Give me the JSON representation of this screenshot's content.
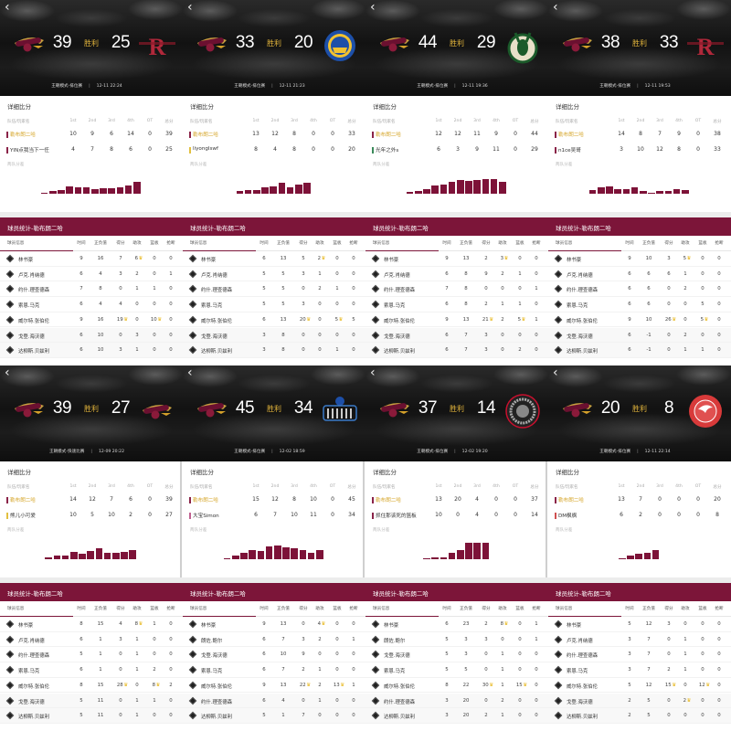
{
  "common": {
    "back_icon": "chevron-left-icon",
    "result": "胜利",
    "detail_title": "详细比分",
    "quarter_headers": [
      "队伍/玩家名",
      "1st",
      "2nd",
      "3rd",
      "4th",
      "OT",
      "总分"
    ],
    "diff_label": "两队分差",
    "stats_title": "球员统计-勒布朗二哈",
    "stat_headers": [
      "球员信息",
      "时间",
      "正负值",
      "得分",
      "助攻",
      "篮板",
      "抢断"
    ],
    "home_logo": "cavaliers-logo",
    "colors": {
      "accent": "#7c1539",
      "home_name": "#d6a62a",
      "result": "#e2b43c",
      "crown": "#e8b923"
    }
  },
  "games": [
    {
      "home_score": "39",
      "away_score": "25",
      "opp_logo": "rockets-logo",
      "mode": "王朝模式-排位赛",
      "datetime": "12-11 22:24",
      "teams": [
        {
          "name": "勒布朗二哈",
          "marker": "#8a2348",
          "q": [
            "10",
            "9",
            "6",
            "14",
            "0",
            "39"
          ]
        },
        {
          "name": "YIN点我当下一任",
          "marker": "#8a2348",
          "q": [
            "4",
            "7",
            "8",
            "6",
            "0",
            "25"
          ]
        }
      ],
      "diff_bars": [
        1,
        3,
        4,
        8,
        7,
        7,
        5,
        6,
        6,
        7,
        9,
        12
      ],
      "players": [
        {
          "name": "林书豪",
          "stats": [
            "9",
            "16",
            "7",
            "6",
            "0",
            "0"
          ],
          "crowns": [
            3
          ]
        },
        {
          "name": "卢克.肖纳德",
          "stats": [
            "6",
            "4",
            "3",
            "2",
            "0",
            "1"
          ],
          "crowns": []
        },
        {
          "name": "约什.理查德森",
          "stats": [
            "7",
            "8",
            "0",
            "1",
            "1",
            "0"
          ],
          "crowns": []
        },
        {
          "name": "索恩.马克",
          "stats": [
            "6",
            "4",
            "4",
            "0",
            "0",
            "0"
          ],
          "crowns": []
        },
        {
          "name": "威尔特.张伯伦",
          "stats": [
            "9",
            "16",
            "19",
            "0",
            "10",
            "0"
          ],
          "crowns": [
            2,
            4
          ]
        },
        {
          "name": "戈登.海沃德",
          "stats": [
            "6",
            "10",
            "0",
            "3",
            "0",
            "0"
          ],
          "crowns": []
        },
        {
          "name": "达柳斯.贝兹利",
          "stats": [
            "6",
            "10",
            "3",
            "1",
            "0",
            "0"
          ],
          "crowns": []
        }
      ]
    },
    {
      "home_score": "33",
      "away_score": "20",
      "opp_logo": "warriors-logo",
      "mode": "王朝模式-排位赛",
      "datetime": "12-11 21:23",
      "teams": [
        {
          "name": "勒布朗二哈",
          "marker": "#8a2348",
          "q": [
            "13",
            "12",
            "8",
            "0",
            "0",
            "33"
          ]
        },
        {
          "name": "liyonglswf",
          "marker": "#e2c040",
          "q": [
            "8",
            "4",
            "8",
            "0",
            "0",
            "20"
          ]
        }
      ],
      "diff_bars": [
        3,
        4,
        4,
        7,
        8,
        11,
        7,
        10,
        11
      ],
      "players": [
        {
          "name": "林书豪",
          "stats": [
            "6",
            "13",
            "5",
            "2",
            "0",
            "0"
          ],
          "crowns": [
            3
          ]
        },
        {
          "name": "卢克.肖纳德",
          "stats": [
            "5",
            "5",
            "3",
            "1",
            "0",
            "0"
          ],
          "crowns": []
        },
        {
          "name": "约什.理查德森",
          "stats": [
            "5",
            "5",
            "0",
            "2",
            "1",
            "0"
          ],
          "crowns": []
        },
        {
          "name": "索恩.马克",
          "stats": [
            "5",
            "5",
            "3",
            "0",
            "0",
            "0"
          ],
          "crowns": []
        },
        {
          "name": "威尔特.张伯伦",
          "stats": [
            "6",
            "13",
            "20",
            "0",
            "5",
            "5"
          ],
          "crowns": [
            2,
            4
          ]
        },
        {
          "name": "戈登.海沃德",
          "stats": [
            "3",
            "8",
            "0",
            "0",
            "0",
            "0"
          ],
          "crowns": []
        },
        {
          "name": "达柳斯.贝兹利",
          "stats": [
            "3",
            "8",
            "0",
            "0",
            "1",
            "0"
          ],
          "crowns": []
        }
      ]
    },
    {
      "home_score": "44",
      "away_score": "29",
      "opp_logo": "bucks-logo",
      "mode": "王朝模式-排位赛",
      "datetime": "12-11 19:36",
      "teams": [
        {
          "name": "勒布朗二哈",
          "marker": "#8a2348",
          "q": [
            "12",
            "12",
            "11",
            "9",
            "0",
            "44"
          ]
        },
        {
          "name": "光年之外s",
          "marker": "#3a8a5a",
          "q": [
            "6",
            "3",
            "9",
            "11",
            "0",
            "29"
          ]
        }
      ],
      "diff_bars": [
        2,
        3,
        5,
        9,
        10,
        12,
        14,
        13,
        14,
        15,
        15,
        12
      ],
      "players": [
        {
          "name": "林书豪",
          "stats": [
            "9",
            "13",
            "2",
            "3",
            "0",
            "0"
          ],
          "crowns": [
            3
          ]
        },
        {
          "name": "卢克.肖纳德",
          "stats": [
            "6",
            "8",
            "9",
            "2",
            "1",
            "0"
          ],
          "crowns": []
        },
        {
          "name": "约什.理查德森",
          "stats": [
            "7",
            "8",
            "0",
            "0",
            "0",
            "1"
          ],
          "crowns": []
        },
        {
          "name": "索恩.马克",
          "stats": [
            "6",
            "8",
            "2",
            "1",
            "1",
            "0"
          ],
          "crowns": []
        },
        {
          "name": "威尔特.张伯伦",
          "stats": [
            "9",
            "13",
            "21",
            "2",
            "5",
            "1"
          ],
          "crowns": [
            2,
            4
          ]
        },
        {
          "name": "戈登.海沃德",
          "stats": [
            "6",
            "7",
            "3",
            "0",
            "0",
            "0"
          ],
          "crowns": []
        },
        {
          "name": "达柳斯.贝兹利",
          "stats": [
            "6",
            "7",
            "3",
            "0",
            "2",
            "0"
          ],
          "crowns": []
        }
      ]
    },
    {
      "home_score": "38",
      "away_score": "33",
      "opp_logo": "rockets-logo",
      "mode": "王朝模式-排位赛",
      "datetime": "12-11 19:53",
      "teams": [
        {
          "name": "勒布朗二哈",
          "marker": "#8a2348",
          "q": [
            "14",
            "8",
            "7",
            "9",
            "0",
            "38"
          ]
        },
        {
          "name": "n1ce吴哥",
          "marker": "#8a2348",
          "q": [
            "3",
            "10",
            "12",
            "8",
            "0",
            "33"
          ]
        }
      ],
      "diff_bars": [
        4,
        7,
        8,
        5,
        5,
        7,
        3,
        1,
        3,
        3,
        5,
        4
      ],
      "players": [
        {
          "name": "林书豪",
          "stats": [
            "9",
            "10",
            "3",
            "5",
            "0",
            "0"
          ],
          "crowns": [
            3
          ]
        },
        {
          "name": "卢克.肖纳德",
          "stats": [
            "6",
            "6",
            "6",
            "1",
            "0",
            "0"
          ],
          "crowns": []
        },
        {
          "name": "约什.理查德森",
          "stats": [
            "6",
            "6",
            "0",
            "2",
            "0",
            "0"
          ],
          "crowns": []
        },
        {
          "name": "索恩.马克",
          "stats": [
            "6",
            "6",
            "0",
            "0",
            "5",
            "0"
          ],
          "crowns": []
        },
        {
          "name": "威尔特.张伯伦",
          "stats": [
            "9",
            "10",
            "26",
            "0",
            "5",
            "0"
          ],
          "crowns": [
            2,
            4
          ]
        },
        {
          "name": "戈登.海沃德",
          "stats": [
            "6",
            "-1",
            "0",
            "2",
            "0",
            "0"
          ],
          "crowns": []
        },
        {
          "name": "达柳斯.贝兹利",
          "stats": [
            "6",
            "-1",
            "0",
            "1",
            "1",
            "0"
          ],
          "crowns": []
        }
      ]
    },
    {
      "home_score": "39",
      "away_score": "27",
      "opp_logo": "cavaliers-logo",
      "mode": "王朝模式-快速比赛",
      "datetime": "12-09 20:22",
      "teams": [
        {
          "name": "勒布朗二哈",
          "marker": "#8a2348",
          "q": [
            "14",
            "12",
            "7",
            "6",
            "0",
            "39"
          ]
        },
        {
          "name": "熊儿小可爱",
          "marker": "#e2c040",
          "q": [
            "10",
            "5",
            "10",
            "2",
            "0",
            "27"
          ]
        }
      ],
      "diff_bars": [
        2,
        4,
        4,
        8,
        6,
        9,
        11,
        7,
        7,
        8,
        10
      ],
      "players": [
        {
          "name": "林书豪",
          "stats": [
            "8",
            "15",
            "4",
            "8",
            "1",
            "0"
          ],
          "crowns": [
            3
          ]
        },
        {
          "name": "卢克.肖纳德",
          "stats": [
            "6",
            "1",
            "3",
            "1",
            "0",
            "0"
          ],
          "crowns": []
        },
        {
          "name": "约什.理查德森",
          "stats": [
            "5",
            "1",
            "0",
            "1",
            "0",
            "0"
          ],
          "crowns": []
        },
        {
          "name": "索恩.马克",
          "stats": [
            "6",
            "1",
            "0",
            "1",
            "2",
            "0"
          ],
          "crowns": []
        },
        {
          "name": "威尔特.张伯伦",
          "stats": [
            "8",
            "15",
            "28",
            "0",
            "8",
            "2"
          ],
          "crowns": [
            2,
            4
          ]
        },
        {
          "name": "戈登.海沃德",
          "stats": [
            "5",
            "11",
            "0",
            "1",
            "1",
            "0"
          ],
          "crowns": []
        },
        {
          "name": "达柳斯.贝兹利",
          "stats": [
            "5",
            "11",
            "0",
            "1",
            "0",
            "0"
          ],
          "crowns": []
        }
      ]
    },
    {
      "home_score": "45",
      "away_score": "34",
      "opp_logo": "clippers-logo",
      "mode": "王朝模式-排位赛",
      "datetime": "12-02 18:59",
      "teams": [
        {
          "name": "勒布朗二哈",
          "marker": "#8a2348",
          "q": [
            "15",
            "12",
            "8",
            "10",
            "0",
            "45"
          ]
        },
        {
          "name": "大宝Simon",
          "marker": "#c06090",
          "q": [
            "6",
            "7",
            "10",
            "11",
            "0",
            "34"
          ]
        }
      ],
      "diff_bars": [
        1,
        4,
        7,
        10,
        9,
        13,
        14,
        12,
        11,
        10,
        7,
        10
      ],
      "players": [
        {
          "name": "林书豪",
          "stats": [
            "9",
            "13",
            "0",
            "4",
            "0",
            "0"
          ],
          "crowns": [
            3
          ]
        },
        {
          "name": "朗佐.鲍尔",
          "stats": [
            "6",
            "7",
            "3",
            "2",
            "0",
            "1"
          ],
          "crowns": []
        },
        {
          "name": "戈登.海沃德",
          "stats": [
            "6",
            "10",
            "9",
            "0",
            "0",
            "0"
          ],
          "crowns": []
        },
        {
          "name": "索恩.马克",
          "stats": [
            "6",
            "7",
            "2",
            "1",
            "0",
            "0"
          ],
          "crowns": []
        },
        {
          "name": "威尔特.张伯伦",
          "stats": [
            "9",
            "13",
            "22",
            "2",
            "13",
            "1"
          ],
          "crowns": [
            2,
            4
          ]
        },
        {
          "name": "约什.理查德森",
          "stats": [
            "6",
            "4",
            "0",
            "1",
            "0",
            "0"
          ],
          "crowns": []
        },
        {
          "name": "达柳斯.贝兹利",
          "stats": [
            "5",
            "1",
            "7",
            "0",
            "0",
            "0"
          ],
          "crowns": []
        }
      ]
    },
    {
      "home_score": "37",
      "away_score": "14",
      "opp_logo": "raptors-logo",
      "mode": "王朝模式-排位赛",
      "datetime": "12-02 19:20",
      "teams": [
        {
          "name": "勒布朗二哈",
          "marker": "#8a2348",
          "q": [
            "13",
            "20",
            "4",
            "0",
            "0",
            "37"
          ]
        },
        {
          "name": "抓住那该死的篮板",
          "marker": "#8a2348",
          "q": [
            "10",
            "0",
            "4",
            "0",
            "0",
            "14"
          ]
        }
      ],
      "diff_bars": [
        1,
        2,
        2,
        7,
        10,
        17,
        17,
        17
      ],
      "players": [
        {
          "name": "林书豪",
          "stats": [
            "6",
            "23",
            "2",
            "8",
            "0",
            "1"
          ],
          "crowns": [
            3
          ]
        },
        {
          "name": "朗佐.鲍尔",
          "stats": [
            "5",
            "3",
            "3",
            "0",
            "0",
            "1"
          ],
          "crowns": []
        },
        {
          "name": "戈登.海沃德",
          "stats": [
            "5",
            "3",
            "0",
            "1",
            "0",
            "0"
          ],
          "crowns": []
        },
        {
          "name": "索恩.马克",
          "stats": [
            "5",
            "5",
            "0",
            "1",
            "0",
            "0"
          ],
          "crowns": []
        },
        {
          "name": "威尔特.张伯伦",
          "stats": [
            "8",
            "22",
            "30",
            "1",
            "15",
            "0"
          ],
          "crowns": [
            2,
            4
          ]
        },
        {
          "name": "约什.理查德森",
          "stats": [
            "3",
            "20",
            "0",
            "2",
            "0",
            "0"
          ],
          "crowns": []
        },
        {
          "name": "达柳斯.贝兹利",
          "stats": [
            "3",
            "20",
            "2",
            "1",
            "0",
            "0"
          ],
          "crowns": []
        }
      ]
    },
    {
      "home_score": "20",
      "away_score": "8",
      "opp_logo": "hawks-logo",
      "mode": "王朝模式-排位赛",
      "datetime": "12-11 22:14",
      "teams": [
        {
          "name": "勒布朗二哈",
          "marker": "#8a2348",
          "q": [
            "13",
            "7",
            "0",
            "0",
            "0",
            "20"
          ]
        },
        {
          "name": "DM枫枫",
          "marker": "#d05050",
          "q": [
            "6",
            "2",
            "0",
            "0",
            "0",
            "8"
          ]
        }
      ],
      "diff_bars": [
        1,
        4,
        6,
        7,
        10
      ],
      "players": [
        {
          "name": "林书豪",
          "stats": [
            "5",
            "12",
            "3",
            "0",
            "0",
            "0"
          ],
          "crowns": []
        },
        {
          "name": "卢克.肖纳德",
          "stats": [
            "3",
            "7",
            "0",
            "1",
            "0",
            "0"
          ],
          "crowns": []
        },
        {
          "name": "约什.理查德森",
          "stats": [
            "3",
            "7",
            "0",
            "1",
            "0",
            "0"
          ],
          "crowns": []
        },
        {
          "name": "索恩.马克",
          "stats": [
            "3",
            "7",
            "2",
            "1",
            "0",
            "0"
          ],
          "crowns": []
        },
        {
          "name": "威尔特.张伯伦",
          "stats": [
            "5",
            "12",
            "15",
            "0",
            "12",
            "0"
          ],
          "crowns": [
            2,
            4
          ]
        },
        {
          "name": "戈登.海沃德",
          "stats": [
            "2",
            "5",
            "0",
            "2",
            "0",
            "0"
          ],
          "crowns": [
            3
          ]
        },
        {
          "name": "达柳斯.贝兹利",
          "stats": [
            "2",
            "5",
            "0",
            "0",
            "0",
            "0"
          ],
          "crowns": []
        }
      ]
    }
  ]
}
